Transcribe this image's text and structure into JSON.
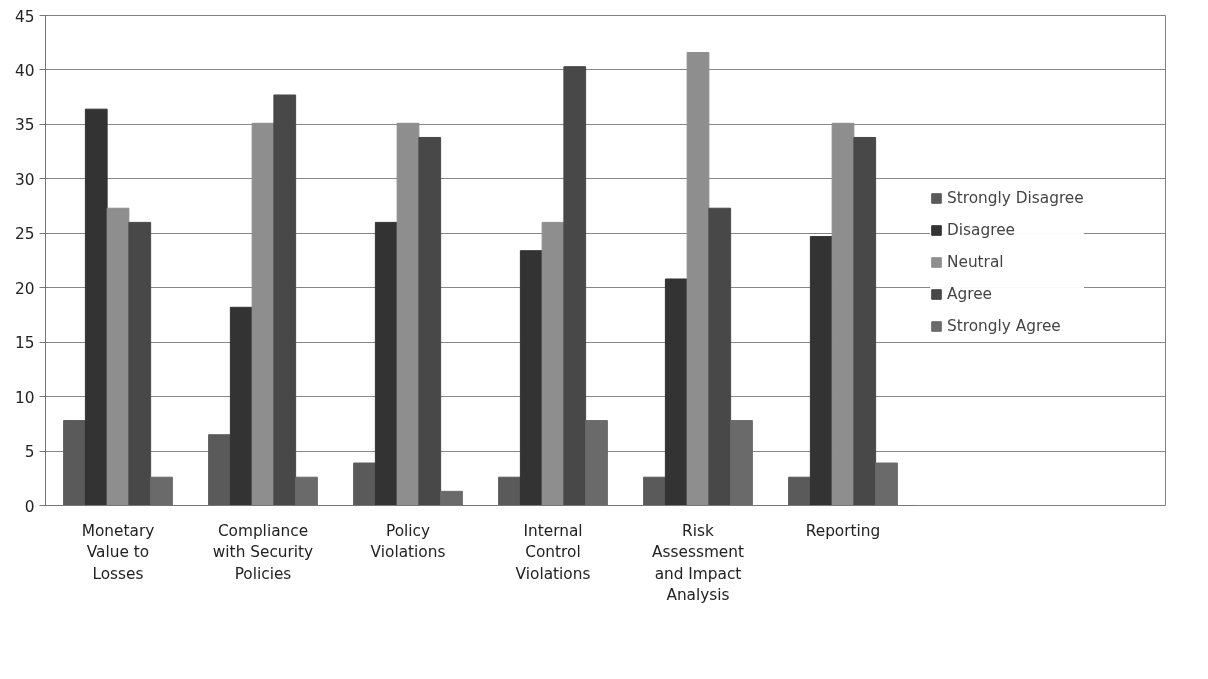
{
  "chart_data": {
    "type": "bar",
    "categories": [
      "Monetary Value to Losses",
      "Compliance with Security Policies",
      "Policy Violations",
      "Internal Control Violations",
      "Risk Assessment and Impact Analysis",
      "Reporting"
    ],
    "series": [
      {
        "name": "Strongly Disagree",
        "color": "#5a5a5a",
        "values": [
          7.8,
          6.5,
          3.9,
          2.6,
          2.6,
          2.6
        ]
      },
      {
        "name": "Disagree",
        "color": "#333333",
        "values": [
          36.4,
          18.2,
          26.0,
          23.4,
          20.8,
          24.7
        ]
      },
      {
        "name": "Neutral",
        "color": "#8e8e8e",
        "values": [
          27.3,
          35.1,
          35.1,
          26.0,
          41.6,
          35.1
        ]
      },
      {
        "name": "Agree",
        "color": "#484848",
        "values": [
          26.0,
          37.7,
          33.8,
          40.3,
          27.3,
          33.8
        ]
      },
      {
        "name": "Strongly Agree",
        "color": "#6a6a6a",
        "values": [
          2.6,
          2.6,
          1.3,
          7.8,
          7.8,
          3.9
        ]
      }
    ],
    "ylim": [
      0,
      45
    ],
    "yticks": [
      0,
      5,
      10,
      15,
      20,
      25,
      30,
      35,
      40,
      45
    ],
    "grid": "y",
    "legend": "right"
  }
}
